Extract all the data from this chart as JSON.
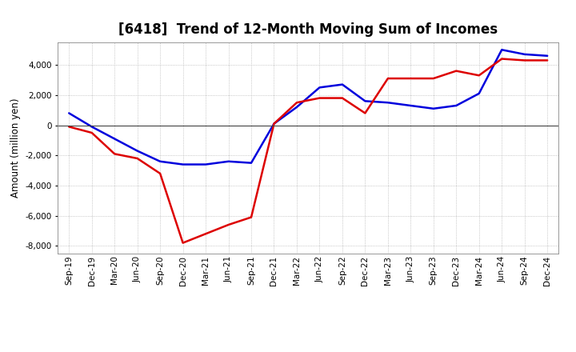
{
  "title": "[6418]  Trend of 12-Month Moving Sum of Incomes",
  "ylabel": "Amount (million yen)",
  "x_labels": [
    "Sep-19",
    "Dec-19",
    "Mar-20",
    "Jun-20",
    "Sep-20",
    "Dec-20",
    "Mar-21",
    "Jun-21",
    "Sep-21",
    "Dec-21",
    "Mar-22",
    "Jun-22",
    "Sep-22",
    "Dec-22",
    "Mar-23",
    "Jun-23",
    "Sep-23",
    "Dec-23",
    "Mar-24",
    "Jun-24",
    "Sep-24",
    "Dec-24"
  ],
  "ordinary_income": [
    800,
    -100,
    -900,
    -1700,
    -2400,
    -2600,
    -2600,
    -2400,
    -2500,
    100,
    1200,
    2500,
    2700,
    1600,
    1500,
    1300,
    1100,
    1300,
    2100,
    5000,
    4700,
    4600
  ],
  "net_income": [
    -100,
    -500,
    -1900,
    -2200,
    -3200,
    -7800,
    -7200,
    -6600,
    -6100,
    100,
    1500,
    1800,
    1800,
    800,
    3100,
    3100,
    3100,
    3600,
    3300,
    4400,
    4300,
    4300
  ],
  "ordinary_color": "#0000dd",
  "net_color": "#dd0000",
  "ylim": [
    -8500,
    5500
  ],
  "yticks": [
    -8000,
    -6000,
    -4000,
    -2000,
    0,
    2000,
    4000
  ],
  "background_color": "#ffffff",
  "grid_color": "#aaaaaa",
  "line_width": 1.8,
  "title_fontsize": 12,
  "ylabel_fontsize": 8.5,
  "tick_fontsize": 7.5,
  "legend_fontsize": 9
}
